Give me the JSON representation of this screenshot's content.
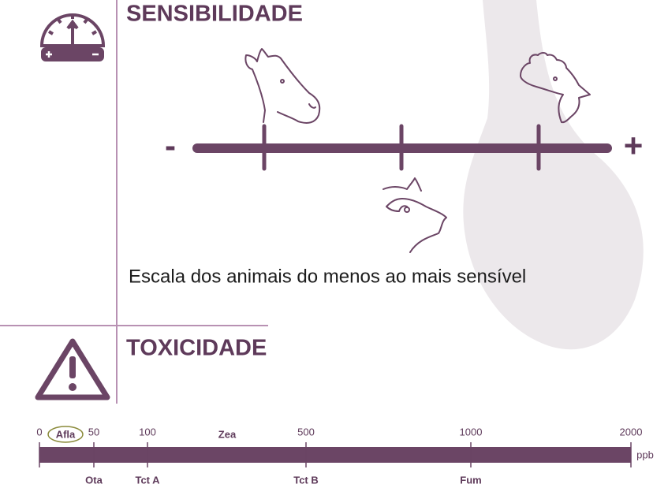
{
  "sensibilidade": {
    "title": "SENSIBILIDADE",
    "scale": {
      "min_label": "-",
      "max_label": "+"
    },
    "caption": "Escala dos animais do menos ao mais sensível"
  },
  "toxicidade": {
    "title": "TOXICIDADE",
    "scale": {
      "ticks": [
        0,
        50,
        100,
        500,
        1000,
        2000
      ],
      "unit": "ppb",
      "above": [
        "Afla",
        "Zea"
      ],
      "below": [
        "Ota",
        "Tct A",
        "Tct B",
        "Fum"
      ]
    }
  }
}
